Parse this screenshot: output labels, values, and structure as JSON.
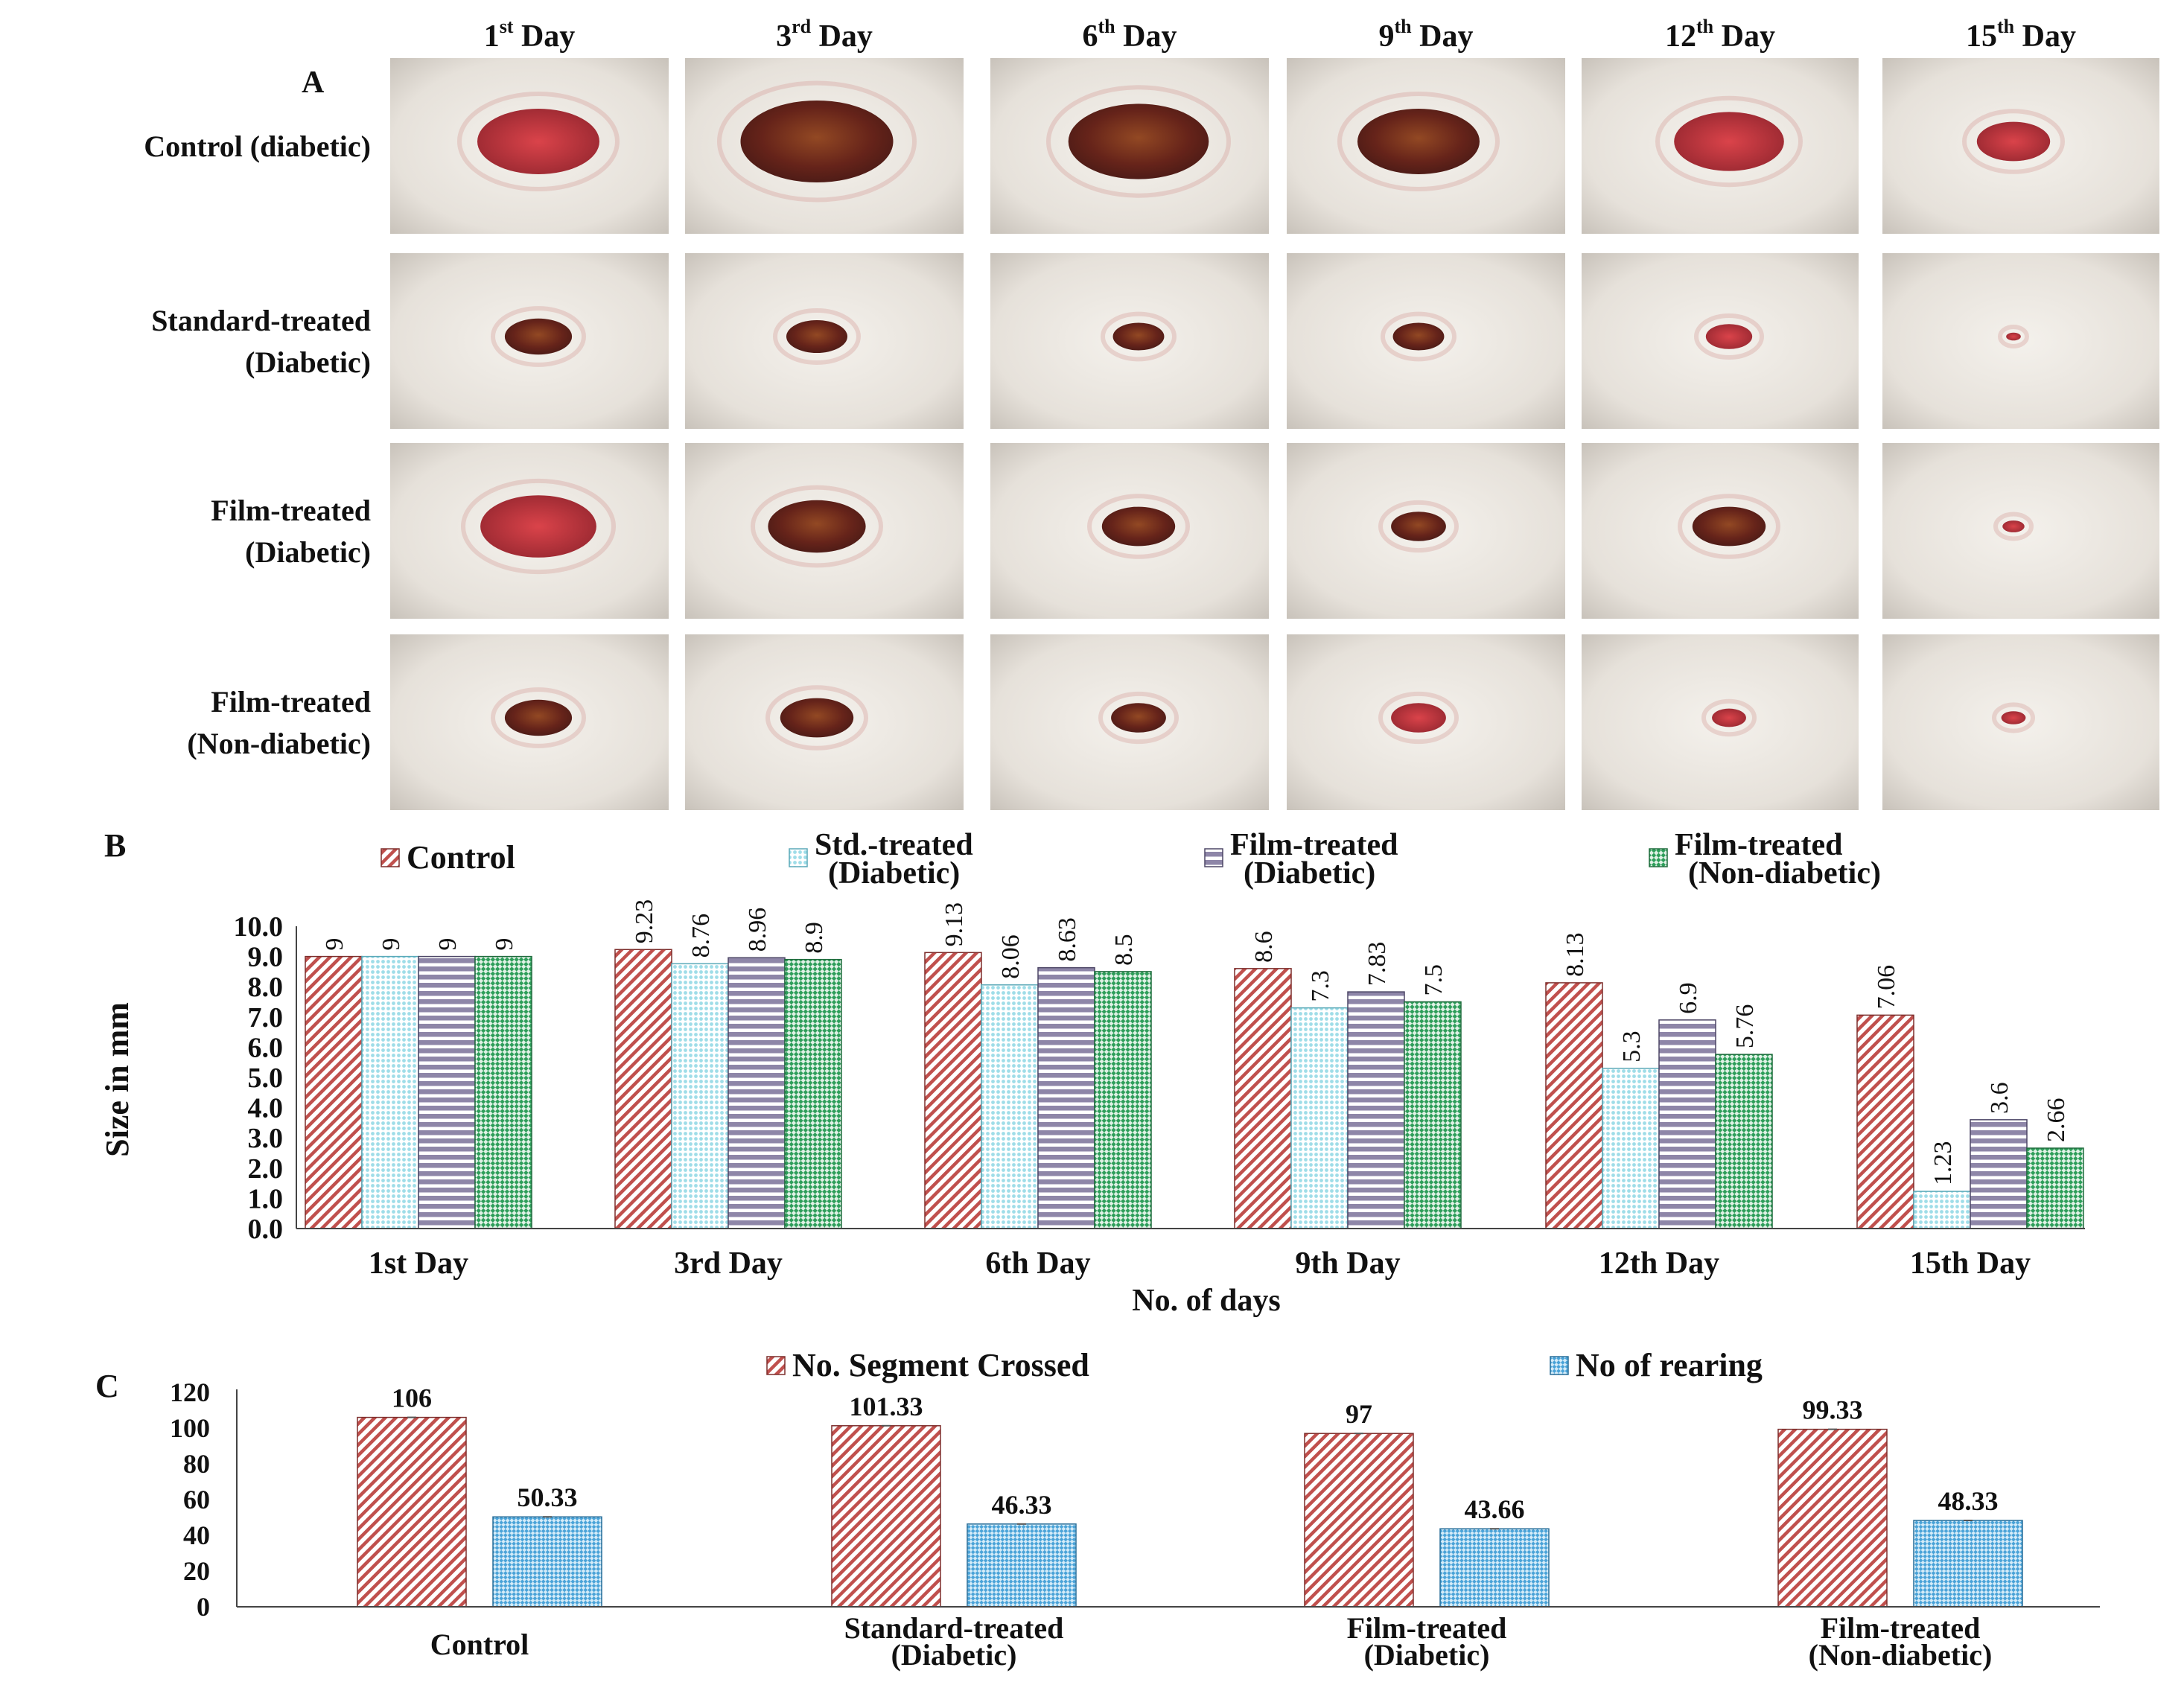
{
  "panel_a": {
    "label": "A",
    "days": [
      {
        "num": "1",
        "sup": "st",
        "word": "Day"
      },
      {
        "num": "3",
        "sup": "rd",
        "word": "Day"
      },
      {
        "num": "6",
        "sup": "th",
        "word": "Day"
      },
      {
        "num": "9",
        "sup": "th",
        "word": "Day"
      },
      {
        "num": "12",
        "sup": "th",
        "word": "Day"
      },
      {
        "num": "15",
        "sup": "th",
        "word": "Day"
      }
    ],
    "groups": [
      {
        "lines": [
          "Control (diabetic)"
        ]
      },
      {
        "lines": [
          "Standard-treated",
          "(Diabetic)"
        ]
      },
      {
        "lines": [
          "Film-treated",
          "(Diabetic)"
        ]
      },
      {
        "lines": [
          "Film-treated",
          "(Non-diabetic)"
        ]
      }
    ],
    "wound_color_dark": "#5a1208",
    "wound_color_red": "#a81c24",
    "fur_color": "#ece8e2"
  },
  "colors": {
    "control": "#c0504d",
    "std": "#9fdde8",
    "film_diab": "#8e86a8",
    "film_nondiab": "#2e9e5a",
    "segment": "#c0504d",
    "rearing": "#4aa3d8"
  },
  "chart_data": [
    {
      "panel": "B",
      "type": "bar",
      "categories": [
        "1st Day",
        "3rd Day",
        "6th Day",
        "9th Day",
        "12th Day",
        "15th Day"
      ],
      "series": [
        {
          "name": "Control",
          "values": [
            9,
            9.23,
            9.13,
            8.6,
            8.13,
            7.06
          ],
          "labels": [
            "9",
            "9.23",
            "9.13",
            "8.6",
            "8.13",
            "7.06"
          ]
        },
        {
          "name": "Std.-treated (Diabetic)",
          "legend_lines": [
            "Std.-treated",
            "(Diabetic)"
          ],
          "values": [
            9,
            8.76,
            8.06,
            7.3,
            5.3,
            1.23
          ],
          "labels": [
            "9",
            "8.76",
            "8.06",
            "7.3",
            "5.3",
            "1.23"
          ]
        },
        {
          "name": "Film-treated (Diabetic)",
          "legend_lines": [
            "Film-treated",
            "(Diabetic)"
          ],
          "values": [
            9,
            8.96,
            8.63,
            7.83,
            6.9,
            3.6
          ],
          "labels": [
            "9",
            "8.96",
            "8.63",
            "7.83",
            "6.9",
            "3.6"
          ]
        },
        {
          "name": "Film-treated (Non-diabetic)",
          "legend_lines": [
            "Film-treated",
            "(Non-diabetic)"
          ],
          "values": [
            9,
            8.9,
            8.5,
            7.5,
            5.76,
            2.66
          ],
          "labels": [
            "9",
            "8.9",
            "8.5",
            "7.5",
            "5.76",
            "2.66"
          ]
        }
      ],
      "xlabel": "No. of days",
      "ylabel": "Size in mm",
      "ylim": [
        0,
        10
      ],
      "yticks": [
        "0.0",
        "1.0",
        "2.0",
        "3.0",
        "4.0",
        "5.0",
        "6.0",
        "7.0",
        "8.0",
        "9.0",
        "10.0"
      ],
      "legend": "top",
      "grid": false
    },
    {
      "panel": "C",
      "type": "bar",
      "categories": [
        {
          "lines": [
            "Control"
          ]
        },
        {
          "lines": [
            "Standard-treated",
            "(Diabetic)"
          ]
        },
        {
          "lines": [
            "Film-treated",
            "(Diabetic)"
          ]
        },
        {
          "lines": [
            "Film-treated",
            "(Non-diabetic)"
          ]
        }
      ],
      "series": [
        {
          "name": "No. Segment Crossed",
          "values": [
            106,
            101.33,
            97,
            99.33
          ],
          "labels": [
            "106",
            "101.33",
            "97",
            "99.33"
          ]
        },
        {
          "name": "No of rearing",
          "values": [
            50.33,
            46.33,
            43.66,
            48.33
          ],
          "labels": [
            "50.33",
            "46.33",
            "43.66",
            "48.33"
          ]
        }
      ],
      "ylim": [
        0,
        120
      ],
      "yticks": [
        "0",
        "20",
        "40",
        "60",
        "80",
        "100",
        "120"
      ],
      "legend": "top",
      "grid": false
    }
  ]
}
